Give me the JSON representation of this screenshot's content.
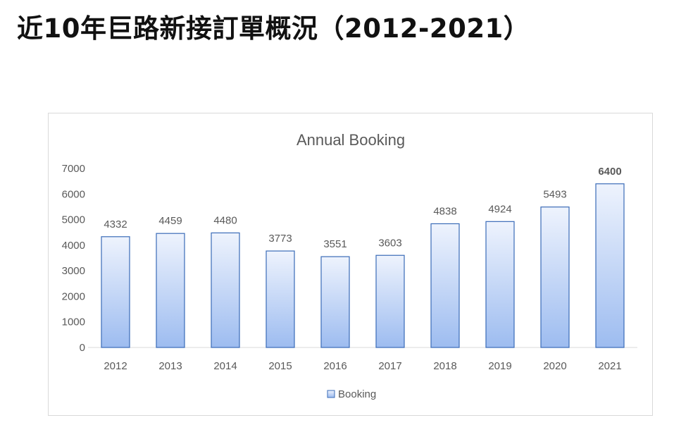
{
  "page": {
    "title": "近10年巨路新接訂單概況（2012-2021）"
  },
  "colors": {
    "bar_fill_top": "#eef3fd",
    "bar_fill_bottom": "#9dbcf0",
    "bar_stroke": "#3a6bb7",
    "axis_text": "#595959",
    "title_text": "#595959",
    "axis_line": "#d9d9d9"
  },
  "chart_data": {
    "type": "bar",
    "title": "Annual Booking",
    "xlabel": "",
    "ylabel": "",
    "categories": [
      "2012",
      "2013",
      "2014",
      "2015",
      "2016",
      "2017",
      "2018",
      "2019",
      "2020",
      "2021"
    ],
    "series": [
      {
        "name": "Booking",
        "values": [
          4332,
          4459,
          4480,
          3773,
          3551,
          3603,
          4838,
          4924,
          5493,
          6400
        ]
      }
    ],
    "data_labels": [
      "4332",
      "4459",
      "4480",
      "3773",
      "3551",
      "3603",
      "4838",
      "4924",
      "5493",
      "6400"
    ],
    "highlighted_label_index": 9,
    "ylim": [
      0,
      7000
    ],
    "yticks": [
      "0",
      "1000",
      "2000",
      "3000",
      "4000",
      "5000",
      "6000",
      "7000"
    ],
    "grid": false,
    "legend_position": "bottom"
  }
}
